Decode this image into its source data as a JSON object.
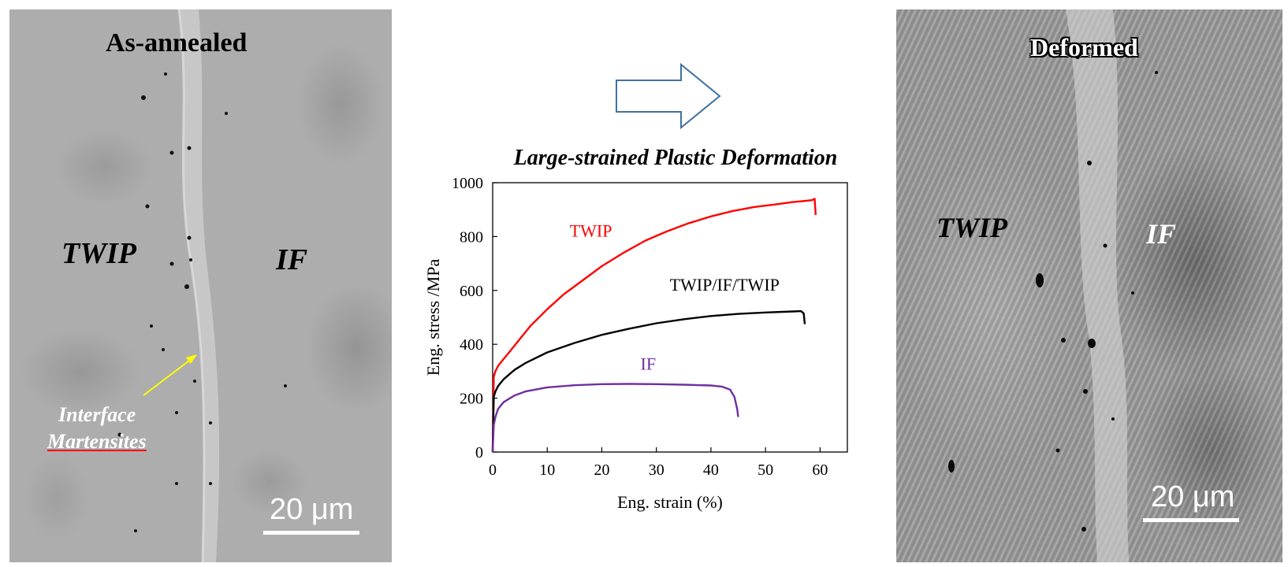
{
  "left_panel": {
    "title": "As-annealed",
    "label_left": "TWIP",
    "label_right": "IF",
    "annotation_line1": "Interface",
    "annotation_line2": "Martensites",
    "scale": "20 μm",
    "arrow_color": "#ffff00"
  },
  "right_panel": {
    "title": "Deformed",
    "label_left": "TWIP",
    "label_right": "IF",
    "scale": "20 μm"
  },
  "arrow": {
    "outline_color": "#41719c"
  },
  "chart_data": {
    "type": "line",
    "title": "Large-strained  Plastic Deformation",
    "xlabel": "Eng. strain (%)",
    "ylabel": "Eng. stress /MPa",
    "xlim": [
      0,
      65
    ],
    "ylim": [
      0,
      1000
    ],
    "xticks": [
      "0",
      "10",
      "20",
      "30",
      "40",
      "50",
      "60"
    ],
    "yticks": [
      "0",
      "200",
      "400",
      "600",
      "800",
      "1000"
    ],
    "series": [
      {
        "name": "TWIP",
        "color": "#ff0000",
        "label_at": [
          18,
          800
        ],
        "x": [
          0,
          0.2,
          0.5,
          1,
          2,
          3,
          5,
          7,
          10,
          13,
          16,
          20,
          24,
          28,
          32,
          36,
          40,
          44,
          48,
          52,
          55,
          57,
          58.5,
          59,
          59.2
        ],
        "y": [
          0,
          280,
          300,
          320,
          345,
          370,
          420,
          470,
          530,
          585,
          630,
          690,
          740,
          785,
          820,
          850,
          875,
          895,
          910,
          920,
          928,
          932,
          935,
          940,
          880
        ]
      },
      {
        "name": "TWIP/IF/TWIP",
        "color": "#000000",
        "label_at": [
          42.5,
          600
        ],
        "x": [
          0,
          0.2,
          0.5,
          1,
          2,
          4,
          6,
          10,
          15,
          20,
          25,
          30,
          35,
          40,
          45,
          50,
          55,
          56.5,
          57,
          57.2
        ],
        "y": [
          0,
          205,
          225,
          245,
          270,
          305,
          330,
          370,
          405,
          435,
          458,
          478,
          493,
          505,
          513,
          518,
          522,
          523,
          515,
          475
        ]
      },
      {
        "name": "IF",
        "color": "#7030a0",
        "label_at": [
          28.5,
          305
        ],
        "x": [
          0,
          0.2,
          0.5,
          1,
          2,
          4,
          6,
          10,
          15,
          20,
          25,
          30,
          35,
          40,
          42,
          43.5,
          44.3,
          44.8,
          45
        ],
        "y": [
          0,
          100,
          130,
          160,
          185,
          210,
          225,
          240,
          248,
          252,
          253,
          252,
          250,
          247,
          243,
          232,
          205,
          160,
          130
        ]
      }
    ]
  }
}
